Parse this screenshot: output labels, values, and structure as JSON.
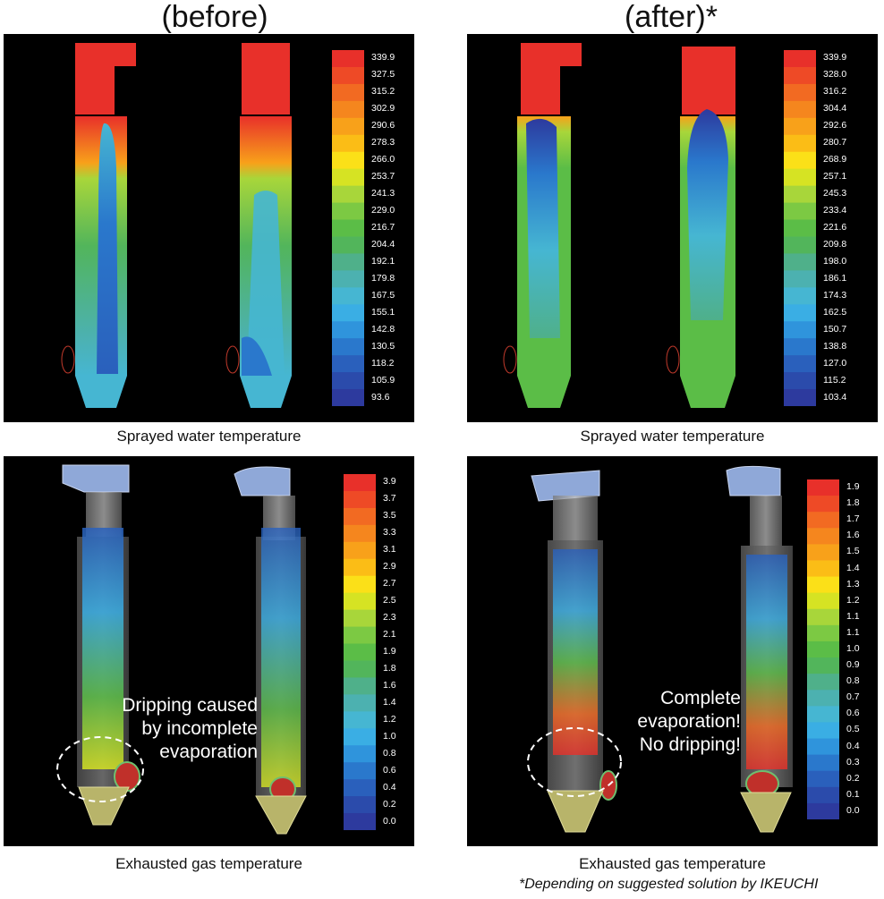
{
  "headers": {
    "before": "(before)",
    "after": "(after)*"
  },
  "captions": {
    "top_left": "Sprayed water temperature",
    "top_right": "Sprayed water temperature",
    "bottom_left": "Exhausted gas temperature",
    "bottom_right": "Exhausted gas temperature"
  },
  "footnote": "*Depending on suggested solution by IKEUCHI",
  "annotations": {
    "before_line1": "Dripping caused",
    "before_line2": "by incomplete",
    "before_line3": "evaporation",
    "after_line1": "Complete",
    "after_line2": "evaporation!",
    "after_line3": "No dripping!"
  },
  "scales": {
    "water_before": [
      "339.9",
      "327.5",
      "315.2",
      "302.9",
      "290.6",
      "278.3",
      "266.0",
      "253.7",
      "241.3",
      "229.0",
      "216.7",
      "204.4",
      "192.1",
      "179.8",
      "167.5",
      "155.1",
      "142.8",
      "130.5",
      "118.2",
      "105.9",
      "93.6"
    ],
    "water_after": [
      "339.9",
      "328.0",
      "316.2",
      "304.4",
      "292.6",
      "280.7",
      "268.9",
      "257.1",
      "245.3",
      "233.4",
      "221.6",
      "209.8",
      "198.0",
      "186.1",
      "174.3",
      "162.5",
      "150.7",
      "138.8",
      "127.0",
      "115.2",
      "103.4"
    ],
    "gas_before": [
      "3.9",
      "3.7",
      "3.5",
      "3.3",
      "3.1",
      "2.9",
      "2.7",
      "2.5",
      "2.3",
      "2.1",
      "1.9",
      "1.8",
      "1.6",
      "1.4",
      "1.2",
      "1.0",
      "0.8",
      "0.6",
      "0.4",
      "0.2",
      "0.0"
    ],
    "gas_after": [
      "1.9",
      "1.8",
      "1.7",
      "1.6",
      "1.5",
      "1.4",
      "1.3",
      "1.2",
      "1.1",
      "1.1",
      "1.0",
      "0.9",
      "0.8",
      "0.7",
      "0.6",
      "0.5",
      "0.4",
      "0.3",
      "0.2",
      "0.1",
      "0.0"
    ]
  },
  "colors": {
    "scale": [
      "#e8302a",
      "#ee4a26",
      "#f26a22",
      "#f5861e",
      "#f8a11a",
      "#fbbd16",
      "#fbe018",
      "#d6e323",
      "#a8d63a",
      "#7cc943",
      "#5bbd47",
      "#52b55b",
      "#4fb08a",
      "#4cb1b0",
      "#46b6d2",
      "#3aaee4",
      "#2f94dc",
      "#2a78cc",
      "#2a60bc",
      "#2b4bab",
      "#2d3a9e"
    ]
  }
}
